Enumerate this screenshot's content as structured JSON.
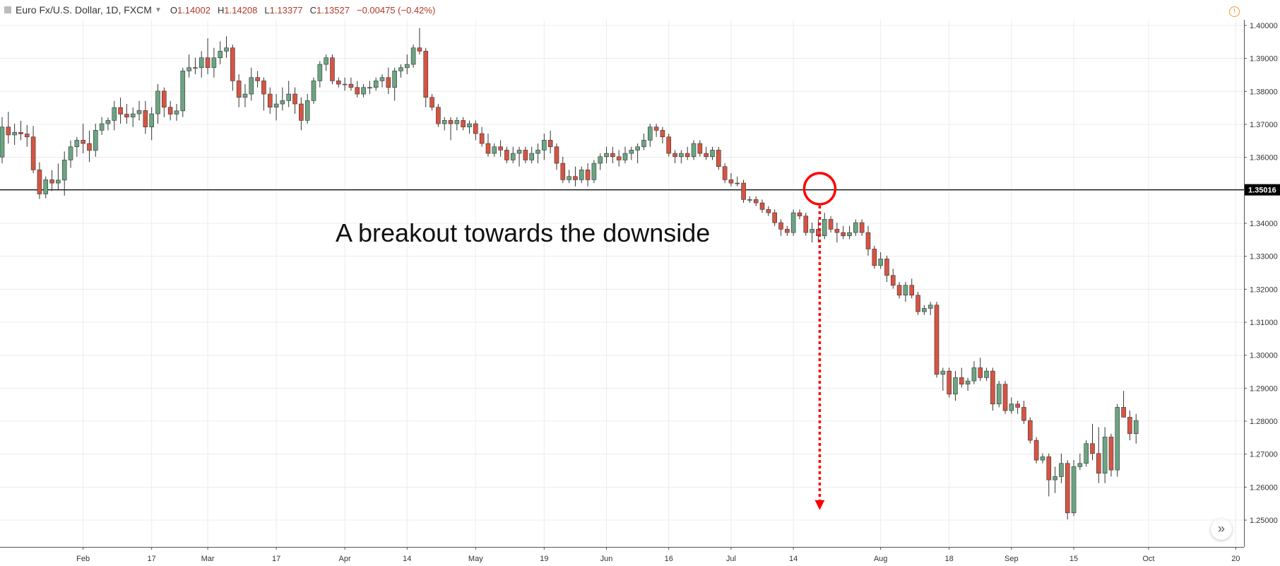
{
  "header": {
    "symbol": "Euro Fx/U.S. Dollar, 1D, FXCM",
    "open_key": "O",
    "open": "1.14002",
    "high_key": "H",
    "high": "1.14208",
    "low_key": "L",
    "low": "1.13377",
    "close_key": "C",
    "close": "1.13527",
    "change": "−0.00475 (−0.42%)"
  },
  "icons": {
    "warning": "warning-circle-icon",
    "scroll": "double-chevron-right-icon"
  },
  "colors": {
    "up": "#6ba583",
    "down": "#d75442",
    "annotation": "#ff0000"
  },
  "chart_data": {
    "type": "candlestick",
    "title": "",
    "ylim": [
      1.245,
      1.4035
    ],
    "y_ticks": [
      "1.40000",
      "1.39000",
      "1.38000",
      "1.37000",
      "1.36000",
      "1.35000",
      "1.34000",
      "1.33000",
      "1.32000",
      "1.31000",
      "1.30000",
      "1.29000",
      "1.28000",
      "1.27000",
      "1.26000",
      "1.25000"
    ],
    "x_ticks": [
      {
        "label": "Feb",
        "index": 13
      },
      {
        "label": "17",
        "index": 24
      },
      {
        "label": "Mar",
        "index": 33
      },
      {
        "label": "17",
        "index": 44
      },
      {
        "label": "Apr",
        "index": 55
      },
      {
        "label": "14",
        "index": 65
      },
      {
        "label": "May",
        "index": 76
      },
      {
        "label": "19",
        "index": 87
      },
      {
        "label": "Jun",
        "index": 97
      },
      {
        "label": "16",
        "index": 107
      },
      {
        "label": "Jul",
        "index": 117
      },
      {
        "label": "14",
        "index": 127
      },
      {
        "label": "Aug",
        "index": 141
      },
      {
        "label": "18",
        "index": 152
      },
      {
        "label": "Sep",
        "index": 162
      },
      {
        "label": "15",
        "index": 172
      },
      {
        "label": "Oct",
        "index": 184
      },
      {
        "label": "20",
        "index": 198
      }
    ],
    "level": {
      "value": 1.35016,
      "label": "1.35016"
    },
    "annotation": {
      "text": "A breakout towards the downside",
      "circle_index": 131,
      "circle_price": 1.3505,
      "arrow_to_price": 1.2535
    },
    "candles": [
      [
        1.3601,
        1.3722,
        1.3582,
        1.3692
      ],
      [
        1.3692,
        1.3738,
        1.3642,
        1.3668
      ],
      [
        1.3668,
        1.3702,
        1.3638,
        1.3676
      ],
      [
        1.3676,
        1.3711,
        1.3652,
        1.3671
      ],
      [
        1.3671,
        1.3698,
        1.3632,
        1.3662
      ],
      [
        1.3662,
        1.3695,
        1.3552,
        1.3562
      ],
      [
        1.3562,
        1.3585,
        1.3474,
        1.3489
      ],
      [
        1.3489,
        1.3542,
        1.3476,
        1.3532
      ],
      [
        1.3532,
        1.3561,
        1.3498,
        1.3522
      ],
      [
        1.3522,
        1.3581,
        1.3503,
        1.3531
      ],
      [
        1.3531,
        1.3618,
        1.3484,
        1.3592
      ],
      [
        1.3592,
        1.3651,
        1.3568,
        1.3632
      ],
      [
        1.3632,
        1.3662,
        1.3602,
        1.3652
      ],
      [
        1.3652,
        1.3702,
        1.3612,
        1.3642
      ],
      [
        1.3642,
        1.3681,
        1.3586,
        1.3621
      ],
      [
        1.3621,
        1.3702,
        1.3602,
        1.3682
      ],
      [
        1.3682,
        1.3722,
        1.3668,
        1.3702
      ],
      [
        1.3702,
        1.3721,
        1.3682,
        1.3712
      ],
      [
        1.3712,
        1.3771,
        1.3682,
        1.3751
      ],
      [
        1.3751,
        1.3781,
        1.3702,
        1.3731
      ],
      [
        1.3731,
        1.3762,
        1.3702,
        1.3722
      ],
      [
        1.3722,
        1.3751,
        1.3692,
        1.3732
      ],
      [
        1.3732,
        1.3771,
        1.3712,
        1.3742
      ],
      [
        1.3742,
        1.3771,
        1.3671,
        1.3692
      ],
      [
        1.3692,
        1.3752,
        1.3652,
        1.3732
      ],
      [
        1.3732,
        1.3822,
        1.3702,
        1.3801
      ],
      [
        1.3801,
        1.3812,
        1.3722,
        1.3752
      ],
      [
        1.3752,
        1.3771,
        1.3712,
        1.3731
      ],
      [
        1.3731,
        1.3762,
        1.3711,
        1.3741
      ],
      [
        1.3741,
        1.3872,
        1.3722,
        1.3862
      ],
      [
        1.3862,
        1.3912,
        1.3842,
        1.3872
      ],
      [
        1.3872,
        1.3902,
        1.3852,
        1.3872
      ],
      [
        1.3872,
        1.3922,
        1.3842,
        1.3902
      ],
      [
        1.3902,
        1.3961,
        1.3852,
        1.3872
      ],
      [
        1.3872,
        1.3932,
        1.3842,
        1.3902
      ],
      [
        1.3902,
        1.3952,
        1.3882,
        1.3922
      ],
      [
        1.3922,
        1.3967,
        1.3902,
        1.3932
      ],
      [
        1.3932,
        1.3942,
        1.3802,
        1.3832
      ],
      [
        1.3832,
        1.3852,
        1.3752,
        1.3782
      ],
      [
        1.3782,
        1.3822,
        1.3752,
        1.3792
      ],
      [
        1.3792,
        1.3872,
        1.3772,
        1.3842
      ],
      [
        1.3842,
        1.3862,
        1.3812,
        1.3832
      ],
      [
        1.3832,
        1.3842,
        1.3742,
        1.3792
      ],
      [
        1.3792,
        1.3812,
        1.3732,
        1.3752
      ],
      [
        1.3752,
        1.3792,
        1.3712,
        1.3762
      ],
      [
        1.3762,
        1.3812,
        1.3742,
        1.3772
      ],
      [
        1.3772,
        1.3832,
        1.3752,
        1.3792
      ],
      [
        1.3792,
        1.3812,
        1.3732,
        1.3762
      ],
      [
        1.3762,
        1.3782,
        1.3682,
        1.3712
      ],
      [
        1.3712,
        1.3792,
        1.3702,
        1.3772
      ],
      [
        1.3772,
        1.3842,
        1.3762,
        1.3832
      ],
      [
        1.3832,
        1.3892,
        1.3812,
        1.3882
      ],
      [
        1.3882,
        1.3912,
        1.3862,
        1.3902
      ],
      [
        1.3902,
        1.3912,
        1.3822,
        1.3832
      ],
      [
        1.3832,
        1.3842,
        1.3812,
        1.3822
      ],
      [
        1.3822,
        1.3842,
        1.3802,
        1.3822
      ],
      [
        1.3822,
        1.3842,
        1.3802,
        1.3812
      ],
      [
        1.3812,
        1.3832,
        1.3782,
        1.3792
      ],
      [
        1.3792,
        1.3822,
        1.3782,
        1.3812
      ],
      [
        1.3812,
        1.3832,
        1.3792,
        1.3812
      ],
      [
        1.3812,
        1.3842,
        1.3802,
        1.3832
      ],
      [
        1.3832,
        1.3852,
        1.3812,
        1.3842
      ],
      [
        1.3842,
        1.3872,
        1.3792,
        1.3812
      ],
      [
        1.3812,
        1.3872,
        1.3772,
        1.3862
      ],
      [
        1.3862,
        1.3882,
        1.3842,
        1.3872
      ],
      [
        1.3872,
        1.3912,
        1.3852,
        1.3882
      ],
      [
        1.3882,
        1.3942,
        1.3872,
        1.3932
      ],
      [
        1.3932,
        1.3992,
        1.3912,
        1.3922
      ],
      [
        1.3922,
        1.3932,
        1.3752,
        1.3782
      ],
      [
        1.3782,
        1.3792,
        1.3742,
        1.3752
      ],
      [
        1.3752,
        1.3762,
        1.3692,
        1.3702
      ],
      [
        1.3702,
        1.3722,
        1.3682,
        1.3712
      ],
      [
        1.3712,
        1.3722,
        1.3652,
        1.3702
      ],
      [
        1.3702,
        1.3722,
        1.3682,
        1.3712
      ],
      [
        1.3712,
        1.3722,
        1.3682,
        1.3692
      ],
      [
        1.3692,
        1.3712,
        1.3672,
        1.3702
      ],
      [
        1.3702,
        1.3712,
        1.3652,
        1.3672
      ],
      [
        1.3672,
        1.3692,
        1.3632,
        1.3642
      ],
      [
        1.3642,
        1.3672,
        1.3602,
        1.3612
      ],
      [
        1.3612,
        1.3642,
        1.3602,
        1.3632
      ],
      [
        1.3632,
        1.3652,
        1.3602,
        1.3622
      ],
      [
        1.3622,
        1.3632,
        1.3582,
        1.3592
      ],
      [
        1.3592,
        1.3632,
        1.3582,
        1.3612
      ],
      [
        1.3612,
        1.3632,
        1.3572,
        1.3622
      ],
      [
        1.3622,
        1.3632,
        1.3582,
        1.3592
      ],
      [
        1.3592,
        1.3632,
        1.3582,
        1.3612
      ],
      [
        1.3612,
        1.3642,
        1.3582,
        1.3622
      ],
      [
        1.3622,
        1.3672,
        1.3592,
        1.3652
      ],
      [
        1.3652,
        1.3681,
        1.3612,
        1.3632
      ],
      [
        1.3632,
        1.3642,
        1.3562,
        1.3582
      ],
      [
        1.3582,
        1.3602,
        1.3522,
        1.3532
      ],
      [
        1.3532,
        1.3562,
        1.3522,
        1.3542
      ],
      [
        1.3542,
        1.3572,
        1.3512,
        1.3532
      ],
      [
        1.3532,
        1.3572,
        1.3522,
        1.3562
      ],
      [
        1.3562,
        1.3582,
        1.3512,
        1.3532
      ],
      [
        1.3532,
        1.3592,
        1.3522,
        1.3582
      ],
      [
        1.3582,
        1.3612,
        1.3562,
        1.3602
      ],
      [
        1.3602,
        1.3632,
        1.3582,
        1.3612
      ],
      [
        1.3612,
        1.3632,
        1.3582,
        1.3602
      ],
      [
        1.3602,
        1.3622,
        1.3572,
        1.3592
      ],
      [
        1.3592,
        1.3632,
        1.3582,
        1.3612
      ],
      [
        1.3612,
        1.3632,
        1.3592,
        1.3622
      ],
      [
        1.3622,
        1.3642,
        1.3582,
        1.3632
      ],
      [
        1.3632,
        1.3672,
        1.3622,
        1.3652
      ],
      [
        1.3652,
        1.3702,
        1.3632,
        1.3692
      ],
      [
        1.3692,
        1.3702,
        1.3662,
        1.3682
      ],
      [
        1.3682,
        1.3692,
        1.3642,
        1.3662
      ],
      [
        1.3662,
        1.3672,
        1.3602,
        1.3612
      ],
      [
        1.3612,
        1.3622,
        1.3582,
        1.3602
      ],
      [
        1.3602,
        1.3622,
        1.3582,
        1.3612
      ],
      [
        1.3612,
        1.3632,
        1.3592,
        1.3602
      ],
      [
        1.3602,
        1.3652,
        1.3592,
        1.3642
      ],
      [
        1.3642,
        1.3652,
        1.3602,
        1.3612
      ],
      [
        1.3612,
        1.3632,
        1.3592,
        1.3602
      ],
      [
        1.3602,
        1.3632,
        1.3592,
        1.3622
      ],
      [
        1.3622,
        1.3632,
        1.3562,
        1.3572
      ],
      [
        1.3572,
        1.3582,
        1.3522,
        1.3532
      ],
      [
        1.3532,
        1.3552,
        1.3512,
        1.3522
      ],
      [
        1.3522,
        1.3542,
        1.3512,
        1.3522
      ],
      [
        1.3522,
        1.3532,
        1.3462,
        1.3472
      ],
      [
        1.3472,
        1.3482,
        1.3462,
        1.3472
      ],
      [
        1.3472,
        1.3482,
        1.3452,
        1.3462
      ],
      [
        1.3462,
        1.3472,
        1.3432,
        1.3442
      ],
      [
        1.3442,
        1.3452,
        1.3422,
        1.3432
      ],
      [
        1.3432,
        1.3442,
        1.3392,
        1.3402
      ],
      [
        1.3402,
        1.3412,
        1.3362,
        1.3382
      ],
      [
        1.3382,
        1.3392,
        1.3362,
        1.3372
      ],
      [
        1.3372,
        1.3442,
        1.3362,
        1.3432
      ],
      [
        1.3432,
        1.3442,
        1.3412,
        1.3422
      ],
      [
        1.3422,
        1.3432,
        1.3362,
        1.3372
      ],
      [
        1.3372,
        1.3402,
        1.3342,
        1.3382
      ],
      [
        1.3382,
        1.3412,
        1.3342,
        1.3362
      ],
      [
        1.3362,
        1.3432,
        1.3352,
        1.3412
      ],
      [
        1.3412,
        1.3422,
        1.3372,
        1.3382
      ],
      [
        1.3382,
        1.3402,
        1.3342,
        1.3372
      ],
      [
        1.3372,
        1.3392,
        1.3352,
        1.3362
      ],
      [
        1.3362,
        1.3392,
        1.3352,
        1.3372
      ],
      [
        1.3372,
        1.3412,
        1.3362,
        1.3402
      ],
      [
        1.3402,
        1.3412,
        1.3362,
        1.3372
      ],
      [
        1.3372,
        1.3392,
        1.3302,
        1.3322
      ],
      [
        1.3322,
        1.3332,
        1.3262,
        1.3272
      ],
      [
        1.3272,
        1.3312,
        1.3262,
        1.3292
      ],
      [
        1.3292,
        1.3302,
        1.3222,
        1.3242
      ],
      [
        1.3242,
        1.3262,
        1.3202,
        1.3212
      ],
      [
        1.3212,
        1.3222,
        1.3172,
        1.3182
      ],
      [
        1.3182,
        1.3222,
        1.3162,
        1.3212
      ],
      [
        1.3212,
        1.3232,
        1.3172,
        1.3182
      ],
      [
        1.3182,
        1.3192,
        1.3122,
        1.3132
      ],
      [
        1.3132,
        1.3152,
        1.3122,
        1.3142
      ],
      [
        1.3142,
        1.3162,
        1.3122,
        1.3152
      ],
      [
        1.3152,
        1.3162,
        1.2932,
        1.2942
      ],
      [
        1.2942,
        1.2962,
        1.2892,
        1.2952
      ],
      [
        1.2952,
        1.2962,
        1.2872,
        1.2882
      ],
      [
        1.2882,
        1.2952,
        1.2862,
        1.2932
      ],
      [
        1.2932,
        1.2962,
        1.2902,
        1.2912
      ],
      [
        1.2912,
        1.2932,
        1.2892,
        1.2922
      ],
      [
        1.2922,
        1.2982,
        1.2912,
        1.2962
      ],
      [
        1.2962,
        1.2992,
        1.2922,
        1.2932
      ],
      [
        1.2932,
        1.2962,
        1.2922,
        1.2952
      ],
      [
        1.2952,
        1.2962,
        1.2832,
        1.2852
      ],
      [
        1.2852,
        1.2922,
        1.2842,
        1.2912
      ],
      [
        1.2912,
        1.2922,
        1.2822,
        1.2832
      ],
      [
        1.2832,
        1.2872,
        1.2822,
        1.2852
      ],
      [
        1.2852,
        1.2862,
        1.2822,
        1.2842
      ],
      [
        1.2842,
        1.2862,
        1.2792,
        1.2802
      ],
      [
        1.2802,
        1.2812,
        1.2732,
        1.2742
      ],
      [
        1.2742,
        1.2752,
        1.2672,
        1.2682
      ],
      [
        1.2682,
        1.2702,
        1.2672,
        1.2692
      ],
      [
        1.2692,
        1.2702,
        1.2572,
        1.2622
      ],
      [
        1.2622,
        1.2662,
        1.2582,
        1.2632
      ],
      [
        1.2632,
        1.2702,
        1.2612,
        1.2672
      ],
      [
        1.2672,
        1.2682,
        1.2502,
        1.2522
      ],
      [
        1.2522,
        1.2682,
        1.2512,
        1.2662
      ],
      [
        1.2662,
        1.2702,
        1.2652,
        1.2672
      ],
      [
        1.2672,
        1.2742,
        1.2662,
        1.2732
      ],
      [
        1.2732,
        1.2792,
        1.2682,
        1.2702
      ],
      [
        1.2702,
        1.2782,
        1.2612,
        1.2642
      ],
      [
        1.2642,
        1.2782,
        1.2612,
        1.2752
      ],
      [
        1.2752,
        1.2762,
        1.2632,
        1.2652
      ],
      [
        1.2652,
        1.2852,
        1.2632,
        1.2842
      ],
      [
        1.2842,
        1.2892,
        1.2812,
        1.2812
      ],
      [
        1.2812,
        1.2832,
        1.2742,
        1.2762
      ],
      [
        1.2762,
        1.2822,
        1.2732,
        1.2802
      ]
    ]
  }
}
